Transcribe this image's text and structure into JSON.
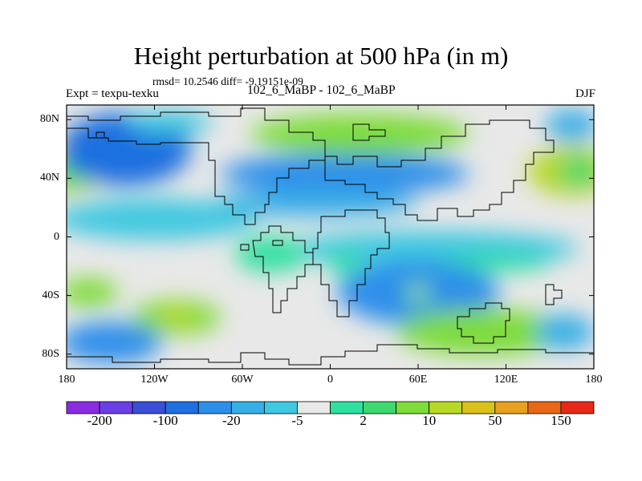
{
  "chart_data": {
    "type": "heatmap",
    "title": "Height perturbation at 500 hPa (in m)",
    "stats_text": "rmsd= 10.2546 diff= -9.19151e-09",
    "left_label": "Expt = texpu-texku",
    "center_label": "102_6_MaBP - 102_6_MaBP",
    "right_label": "DJF",
    "xlim": [
      -180,
      180
    ],
    "ylim": [
      -90,
      90
    ],
    "x_ticks": [
      {
        "value": -180,
        "label": "180"
      },
      {
        "value": -120,
        "label": "120W"
      },
      {
        "value": -60,
        "label": "60W"
      },
      {
        "value": 0,
        "label": "0"
      },
      {
        "value": 60,
        "label": "60E"
      },
      {
        "value": 120,
        "label": "120E"
      },
      {
        "value": 180,
        "label": "180"
      }
    ],
    "y_ticks": [
      {
        "value": 80,
        "label": "80N"
      },
      {
        "value": 40,
        "label": "40N"
      },
      {
        "value": 0,
        "label": "0"
      },
      {
        "value": -40,
        "label": "40S"
      },
      {
        "value": -80,
        "label": "80S"
      }
    ],
    "colorbar": {
      "colors": [
        "#8a2be2",
        "#6a3fe6",
        "#3a4fd6",
        "#1f6fe0",
        "#2d8fea",
        "#38aee6",
        "#3fc8e0",
        "#e8e8e8",
        "#2fe0a0",
        "#3dd870",
        "#7edc3a",
        "#b8d827",
        "#d8c21b",
        "#e8a020",
        "#e86818",
        "#e82818"
      ],
      "labels": [
        {
          "after_box": 1,
          "label": "-200"
        },
        {
          "after_box": 3,
          "label": "-100"
        },
        {
          "after_box": 5,
          "label": "-20"
        },
        {
          "after_box": 7,
          "label": "-5"
        },
        {
          "after_box": 9,
          "label": "2"
        },
        {
          "after_box": 11,
          "label": "10"
        },
        {
          "after_box": 13,
          "label": "50"
        },
        {
          "after_box": 15,
          "label": "150"
        }
      ]
    },
    "fields": [
      {
        "lon": -180,
        "lat": 48,
        "level": 4,
        "rx": 30,
        "ry": 18
      },
      {
        "lon": -175,
        "lat": 45,
        "level": 2.4,
        "rx": 16,
        "ry": 10
      },
      {
        "lon": -140,
        "lat": 60,
        "level": -4,
        "rx": 45,
        "ry": 25
      },
      {
        "lon": -150,
        "lat": 62,
        "level": -3.6,
        "rx": 22,
        "ry": 14
      },
      {
        "lon": -110,
        "lat": 78,
        "level": -1.5,
        "rx": 30,
        "ry": 8
      },
      {
        "lon": 165,
        "lat": 45,
        "level": 4,
        "rx": 30,
        "ry": 17
      },
      {
        "lon": 170,
        "lat": 45,
        "level": 2.4,
        "rx": 14,
        "ry": 10
      },
      {
        "lon": 165,
        "lat": 76,
        "level": -2,
        "rx": 18,
        "ry": 11
      },
      {
        "lon": 10,
        "lat": 43,
        "level": -3.5,
        "rx": 85,
        "ry": 14
      },
      {
        "lon": 20,
        "lat": 70,
        "level": 3,
        "rx": 75,
        "ry": 14
      },
      {
        "lon": -10,
        "lat": 23,
        "level": -1.6,
        "rx": 70,
        "ry": 9
      },
      {
        "lon": -120,
        "lat": 12,
        "level": -1.5,
        "rx": 70,
        "ry": 14
      },
      {
        "lon": 70,
        "lat": -8,
        "level": -1.5,
        "rx": 100,
        "ry": 12
      },
      {
        "lon": -40,
        "lat": -12,
        "level": 1,
        "rx": 25,
        "ry": 12
      },
      {
        "lon": 10,
        "lat": -18,
        "level": 1,
        "rx": 12,
        "ry": 8
      },
      {
        "lon": 110,
        "lat": -18,
        "level": 1,
        "rx": 40,
        "ry": 6
      },
      {
        "lon": 60,
        "lat": -38,
        "level": -3,
        "rx": 55,
        "ry": 22
      },
      {
        "lon": 60,
        "lat": -38,
        "level": 2.3,
        "rx": 9,
        "ry": 7
      },
      {
        "lon": 60,
        "lat": -38,
        "level": 0,
        "rx": 4,
        "ry": 3
      },
      {
        "lon": -165,
        "lat": -38,
        "level": 2.5,
        "rx": 20,
        "ry": 10
      },
      {
        "lon": -105,
        "lat": -55,
        "level": 3,
        "rx": 30,
        "ry": 12
      },
      {
        "lon": -105,
        "lat": -55,
        "level": 3.5,
        "rx": 14,
        "ry": 6
      },
      {
        "lon": -150,
        "lat": -72,
        "level": -3,
        "rx": 35,
        "ry": 14
      },
      {
        "lon": 105,
        "lat": -65,
        "level": 2.7,
        "rx": 60,
        "ry": 16
      },
      {
        "lon": 100,
        "lat": -66,
        "level": 3.3,
        "rx": 25,
        "ry": 8
      },
      {
        "lon": 160,
        "lat": -65,
        "level": -2,
        "rx": 20,
        "ry": 12
      }
    ]
  }
}
